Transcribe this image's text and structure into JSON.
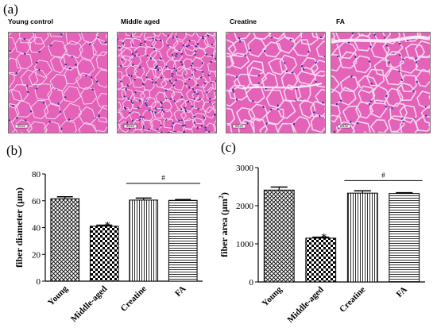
{
  "panel_labels": [
    "(a)",
    "(b)",
    "(c)"
  ],
  "micrographs": [
    {
      "title": "Young control",
      "scale": "60um",
      "variant": "young"
    },
    {
      "title": "Middle aged",
      "scale": "60um",
      "variant": "middle"
    },
    {
      "title": "Creatine",
      "scale": "60um",
      "variant": "creatine"
    },
    {
      "title": "FA",
      "scale": "60um",
      "variant": "fa"
    }
  ],
  "colors": {
    "tissue": "#e463b9",
    "membrane": "#f6d4ee",
    "nucleus": "#3d2f96",
    "young_fill": "crosshatch",
    "middle_fill": "checker",
    "creatine_fill": "vertical-lines",
    "fa_fill": "horizontal-lines"
  },
  "chart_data": [
    {
      "type": "bar",
      "categories": [
        "Young",
        "Middle-aged",
        "Creatine",
        "FA"
      ],
      "values": [
        61.5,
        41,
        60.5,
        60.3
      ],
      "errors": [
        1.5,
        0.8,
        1.5,
        0.6
      ],
      "ylabel": "fiber diameter (μm)",
      "ylim": [
        0,
        80
      ],
      "yticks": [
        "0",
        "20",
        "40",
        "60",
        "80"
      ],
      "annotations": [
        {
          "text": "*",
          "category": "Middle-aged"
        },
        {
          "text": "#",
          "categories": [
            "Creatine",
            "FA"
          ],
          "y": 73
        }
      ]
    },
    {
      "type": "bar",
      "categories": [
        "Young",
        "Middle-aged",
        "Creatine",
        "FA"
      ],
      "values": [
        2410,
        1150,
        2330,
        2320
      ],
      "errors": [
        80,
        25,
        60,
        20
      ],
      "ylabel": "fiber area (μm",
      "ylabel_superscript": "2",
      "ylabel_close": ")",
      "ylim": [
        0,
        3000
      ],
      "yticks": [
        "0",
        "1000",
        "2000",
        "3000"
      ],
      "annotations": [
        {
          "text": "*",
          "category": "Middle-aged"
        },
        {
          "text": "#",
          "categories": [
            "Creatine",
            "FA"
          ],
          "y": 2660
        }
      ]
    }
  ]
}
